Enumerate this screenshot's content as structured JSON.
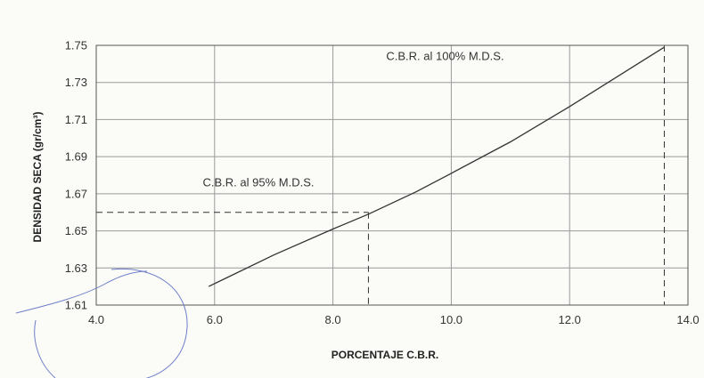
{
  "chart_data": {
    "type": "line",
    "title": "",
    "xlabel": "PORCENTAJE C.B.R.",
    "ylabel": "DENSIDAD SECA (gr/cm³)",
    "xlim": [
      4.0,
      14.0
    ],
    "ylim": [
      1.61,
      1.75
    ],
    "x_ticks": [
      "4.0",
      "6.0",
      "8.0",
      "10.0",
      "12.0",
      "14.0"
    ],
    "y_ticks": [
      "1.61",
      "1.63",
      "1.65",
      "1.67",
      "1.69",
      "1.71",
      "1.73",
      "1.75"
    ],
    "grid": true,
    "series": [
      {
        "x": [
          5.9,
          7.0,
          8.0,
          8.6,
          9.4,
          10.0,
          11.0,
          12.0,
          13.0,
          13.6
        ],
        "y": [
          1.62,
          1.637,
          1.651,
          1.659,
          1.671,
          1.681,
          1.698,
          1.717,
          1.737,
          1.749
        ],
        "color": "#333333"
      }
    ],
    "reference_lines": [
      {
        "x": 8.6,
        "y": 1.66
      },
      {
        "x": 13.6,
        "y": 1.75
      }
    ],
    "annotations": [
      {
        "text": "C.B.R. al 100% M.D.S.",
        "x": 8.9,
        "y": 1.742
      },
      {
        "text": "C.B.R. al 95% M.D.S.",
        "x": 5.8,
        "y": 1.674
      }
    ]
  }
}
